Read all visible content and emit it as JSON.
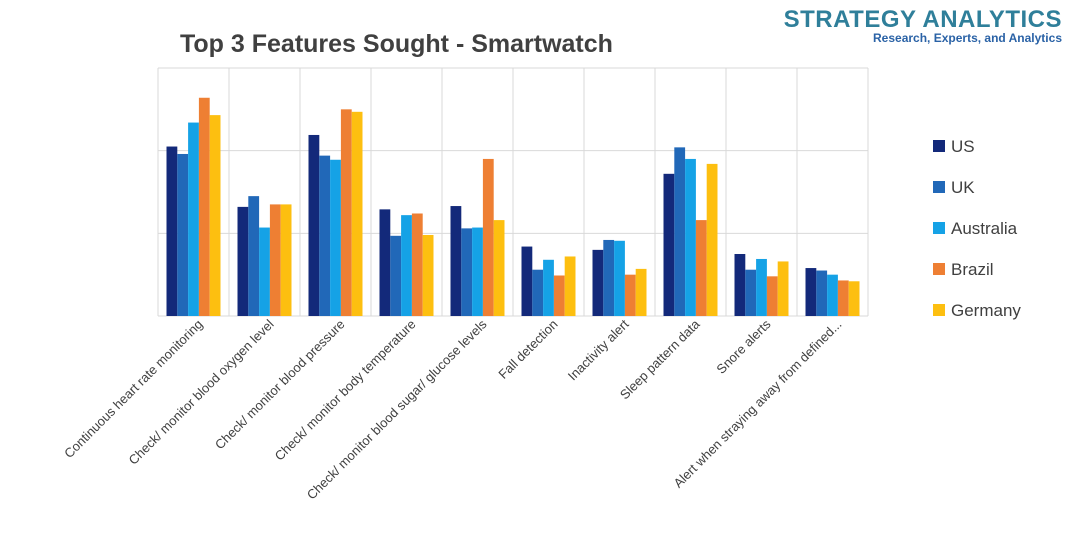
{
  "brand": {
    "name": "STRATEGY ANALYTICS",
    "tagline": "Research, Experts, and Analytics"
  },
  "chart_data": {
    "type": "bar",
    "title": "Top 3 Features Sought - Smartwatch",
    "xlabel": "",
    "ylabel": "",
    "ylim": [
      0,
      30
    ],
    "y_gridlines": [
      10,
      20,
      30
    ],
    "y_tick_labels_shown": false,
    "legend_position": "right",
    "categories": [
      "Continuous heart rate monitoring",
      "Check/ monitor blood oxygen level",
      "Check/ monitor blood pressure",
      "Check/ monitor body temperature",
      "Check/ monitor blood sugar/ glucose levels",
      "Fall detection",
      "Inactivity alert",
      "Sleep pattern data",
      "Snore alerts",
      "Alert when straying away from defined..."
    ],
    "series": [
      {
        "name": "US",
        "color": "#13297a",
        "values": [
          20.5,
          13.2,
          21.9,
          12.9,
          13.3,
          8.4,
          8.0,
          17.2,
          7.5,
          5.8
        ]
      },
      {
        "name": "UK",
        "color": "#2168b8",
        "values": [
          19.6,
          14.5,
          19.4,
          9.7,
          10.6,
          5.6,
          9.2,
          20.4,
          5.6,
          5.5
        ]
      },
      {
        "name": "Australia",
        "color": "#15a2e6",
        "values": [
          23.4,
          10.7,
          18.9,
          12.2,
          10.7,
          6.8,
          9.1,
          19.0,
          6.9,
          5.0
        ]
      },
      {
        "name": "Brazil",
        "color": "#ee7f33",
        "values": [
          26.4,
          13.5,
          25.0,
          12.4,
          19.0,
          4.9,
          5.0,
          11.6,
          4.8,
          4.3
        ]
      },
      {
        "name": "Germany",
        "color": "#fdbf10",
        "values": [
          24.3,
          13.5,
          24.7,
          9.8,
          11.6,
          7.2,
          5.7,
          18.4,
          6.6,
          4.2
        ]
      }
    ]
  }
}
